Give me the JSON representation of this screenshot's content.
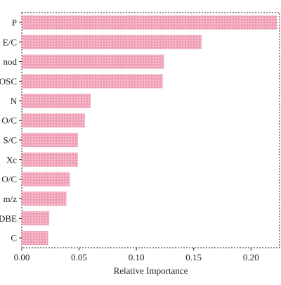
{
  "chart_data": {
    "type": "bar",
    "orientation": "horizontal",
    "title": "",
    "xlabel": "Relative Importance",
    "ylabel": "",
    "categories": [
      "P",
      "E/C",
      "nod",
      "OSC",
      "N",
      "O/C",
      "S/C",
      "Xc",
      "O/C",
      "m/z",
      "DBE",
      "C"
    ],
    "values": [
      0.223,
      0.157,
      0.124,
      0.123,
      0.06,
      0.055,
      0.049,
      0.049,
      0.042,
      0.039,
      0.024,
      0.023
    ],
    "xlim": [
      0.0,
      0.225
    ],
    "xticks": [
      "0.00",
      "0.05",
      "0.10",
      "0.15",
      "0.20"
    ],
    "xtick_values": [
      0.0,
      0.05,
      0.1,
      0.15,
      0.2
    ],
    "grid": false,
    "legend": "none",
    "bar_color": "#f0a0b4",
    "bar_dot_color": "#fbe3ea",
    "frame_style": "dashed",
    "frame_color": "#222222"
  }
}
